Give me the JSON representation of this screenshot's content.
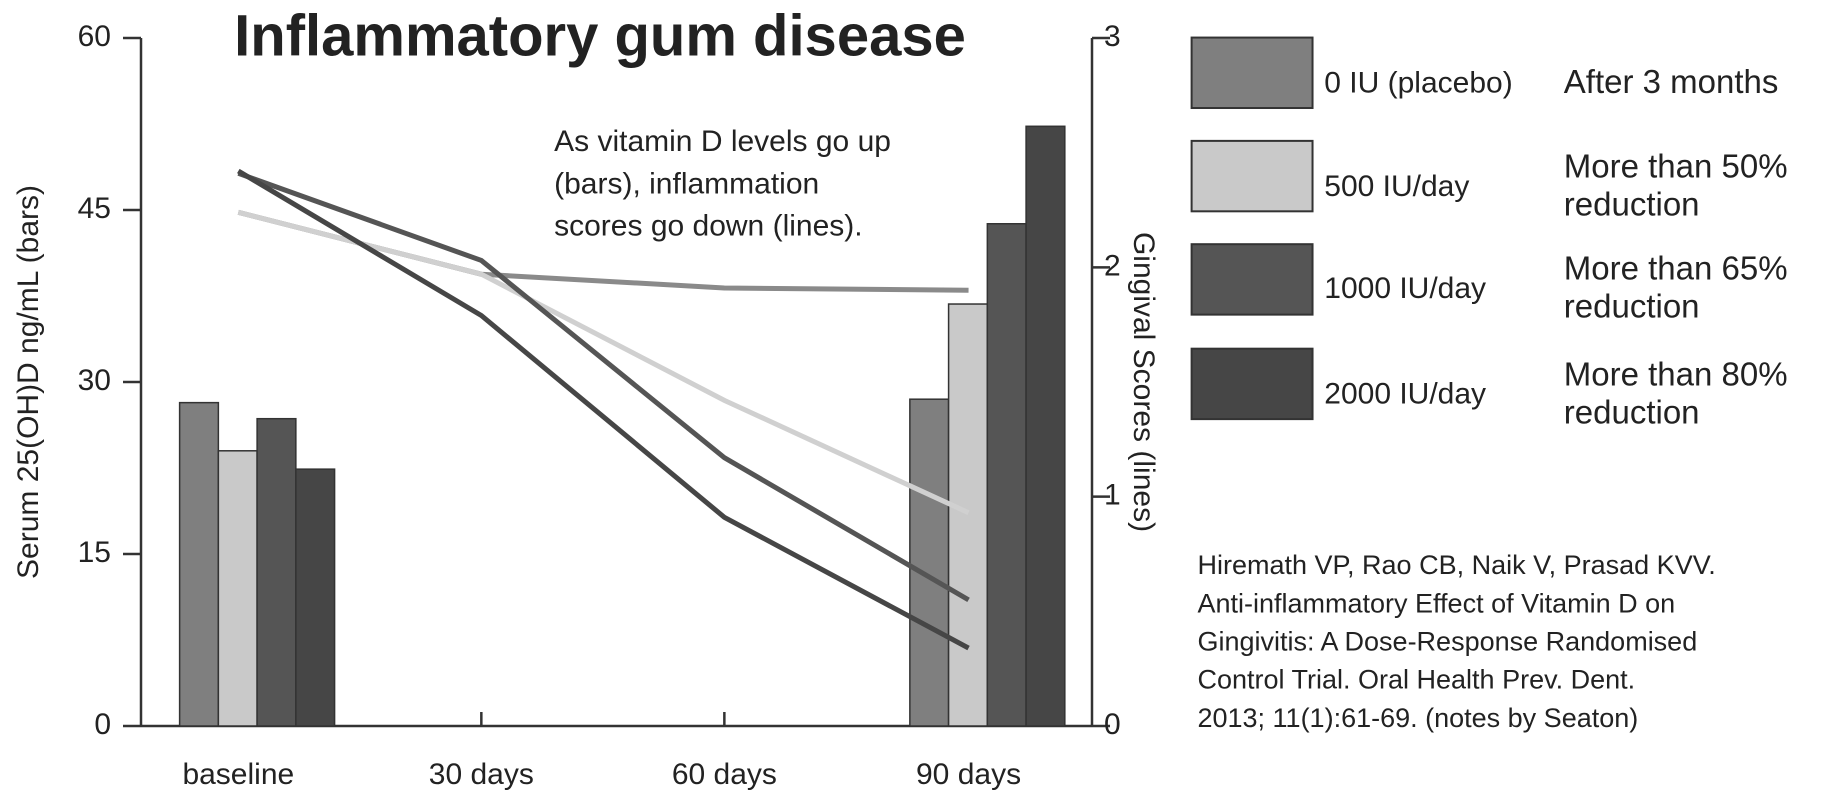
{
  "chart_data": {
    "type": "combo",
    "title": "Inflammatory gum disease",
    "y_label": "Serum 25(OH)D ng/mL (bars)",
    "y2_label": "Gingival Scores (lines)",
    "categories": [
      "baseline",
      "30 days",
      "60 days",
      "90 days"
    ],
    "ylim": [
      0,
      60
    ],
    "yticks": [
      0,
      15,
      30,
      45,
      60
    ],
    "y2lim": [
      0,
      3
    ],
    "y2ticks": [
      0,
      1,
      2,
      3
    ],
    "series": [
      {
        "name": "0 IU (placebo)",
        "color": "#7f7f7f",
        "values": [
          28.2,
          null,
          null,
          28.5
        ],
        "note": [
          "After 3 months"
        ]
      },
      {
        "name": "500 IU/day",
        "color": "#c9c9c9",
        "values": [
          24.0,
          null,
          null,
          36.8
        ],
        "note": [
          "More than 50%",
          "reduction"
        ]
      },
      {
        "name": "1000 IU/day",
        "color": "#555555",
        "values": [
          26.8,
          null,
          null,
          43.8
        ],
        "note": [
          "More than 65%",
          "reduction"
        ]
      },
      {
        "name": "2000 IU/day",
        "color": "#464646",
        "values": [
          22.4,
          null,
          null,
          52.3
        ],
        "note": [
          "More than 80%",
          "reduction"
        ]
      }
    ],
    "line_series": [
      {
        "axis": "y2",
        "color": "#8a8a8a",
        "values": [
          2.24,
          1.97,
          1.91,
          1.9
        ]
      },
      {
        "axis": "y2",
        "color": "#d0d0d0",
        "values": [
          2.24,
          1.97,
          1.42,
          0.93
        ]
      },
      {
        "axis": "y2",
        "color": "#555555",
        "values": [
          2.41,
          2.03,
          1.17,
          0.55
        ]
      },
      {
        "axis": "y2",
        "color": "#464646",
        "values": [
          2.42,
          1.79,
          0.91,
          0.34
        ]
      }
    ],
    "annotation": [
      "As vitamin D levels go up",
      "(bars), inflammation",
      "scores go down (lines)."
    ],
    "citation": [
      "Hiremath VP, Rao CB, Naik V, Prasad KVV.",
      "Anti-inflammatory Effect of Vitamin D on",
      "Gingivitis: A Dose-Response Randomised",
      "Control Trial. Oral Health Prev. Dent.",
      "2013; 11(1):61-69. (notes by Seaton)"
    ]
  }
}
